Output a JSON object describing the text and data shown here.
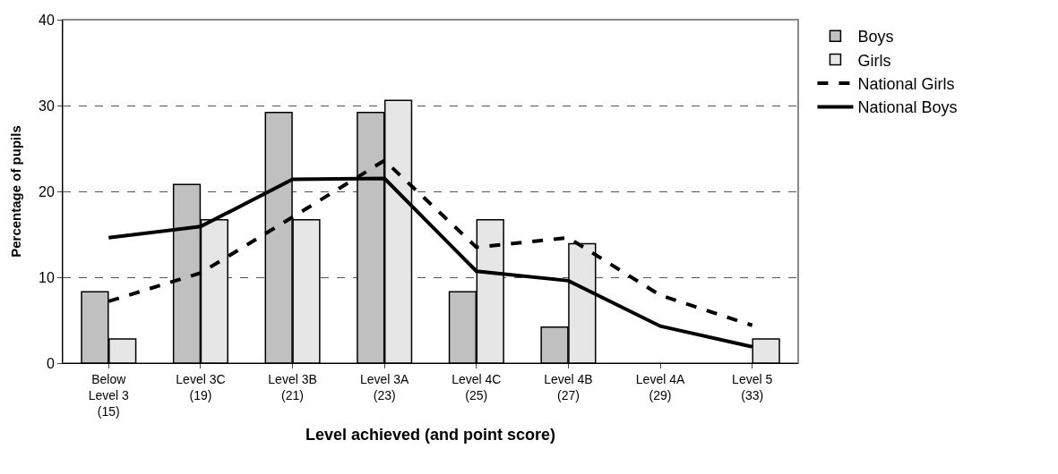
{
  "chart_data": {
    "type": "bar",
    "xlabel": "Level achieved (and point score)",
    "ylabel": "Percentage of pupils",
    "categories": [
      "Below\nLevel 3\n(15)",
      "Level 3C\n(19)",
      "Level 3B\n(21)",
      "Level 3A\n(23)",
      "Level 4C\n(25)",
      "Level 4B\n(27)",
      "Level 4A\n(29)",
      "Level 5\n(33)"
    ],
    "series": [
      {
        "name": "Boys",
        "color": "#c0c0c0",
        "values": [
          8.3,
          20.8,
          29.2,
          29.2,
          8.3,
          4.2,
          null,
          null
        ]
      },
      {
        "name": "Girls",
        "color": "#e6e6e6",
        "values": [
          2.8,
          16.7,
          16.7,
          30.6,
          16.7,
          13.9,
          null,
          2.8
        ]
      },
      {
        "name": "National Girls",
        "type": "line",
        "color": "#000000",
        "line_style": "dashed",
        "values": [
          7.2,
          10.5,
          17.0,
          23.6,
          13.5,
          14.6,
          7.9,
          4.4
        ]
      },
      {
        "name": "National Boys",
        "type": "line",
        "color": "#000000",
        "line_style": "solid",
        "values": [
          14.6,
          15.9,
          21.4,
          21.5,
          10.7,
          9.6,
          4.3,
          1.9
        ]
      }
    ],
    "ylim": [
      0,
      40
    ],
    "yticks": [
      0,
      10,
      20,
      30,
      40
    ],
    "grid": "y",
    "legend": "top right"
  }
}
